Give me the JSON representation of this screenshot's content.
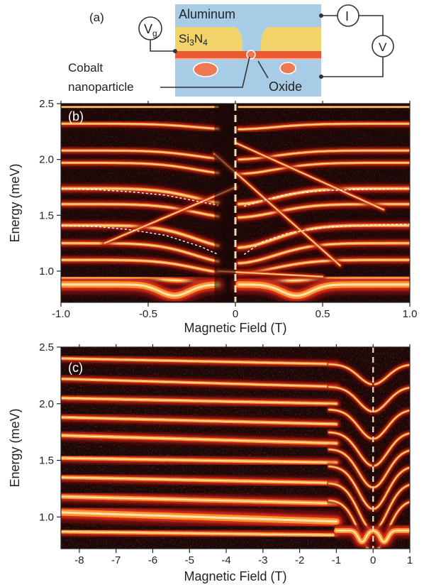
{
  "panel_a": {
    "label": "(a)",
    "vg_label": "V",
    "vg_sub": "g",
    "current_label": "I",
    "voltage_label": "V",
    "aluminum_label": "Aluminum",
    "si3n4_label": "Si",
    "si3n4_sub": "3",
    "si3n4_n": "N",
    "si3n4_sub2": "4",
    "oxide_label": "Oxide",
    "cobalt_line1": "Cobalt",
    "cobalt_line2": "nanoparticle",
    "colors": {
      "aluminum": "#a8cbe6",
      "si3n4": "#f2d36a",
      "oxide": "#ea5a33",
      "cobalt": "#ef7a52"
    }
  },
  "chart_data": [
    {
      "type": "heatmap",
      "panel_label": "(b)",
      "xlabel": "Magnetic Field (T)",
      "ylabel": "Energy (meV)",
      "xlim": [
        -1.0,
        1.0
      ],
      "ylim": [
        0.72,
        2.5
      ],
      "xticks": [
        -1.0,
        -0.5,
        0,
        0.5,
        1.0
      ],
      "xtick_labels": [
        "-1.0",
        "-0.5",
        "0",
        "0.5",
        "1.0"
      ],
      "yticks": [
        1.0,
        1.5,
        2.0,
        2.5
      ],
      "ytick_labels": [
        "1.0",
        "1.5",
        "2.0",
        "2.5"
      ],
      "colormap": [
        "#1a0707",
        "#7a0f0a",
        "#e0301a",
        "#ff9a2e",
        "#fff6cc"
      ],
      "dashed_fits": [
        {
          "x": [
            -1.0,
            -0.8,
            -0.6,
            -0.4,
            -0.2,
            -0.1
          ],
          "y": [
            1.74,
            1.73,
            1.71,
            1.68,
            1.62,
            1.59
          ]
        },
        {
          "x": [
            0.05,
            0.15,
            0.3,
            0.5,
            0.7,
            1.0
          ],
          "y": [
            1.58,
            1.63,
            1.69,
            1.72,
            1.73,
            1.74
          ]
        },
        {
          "x": [
            -1.0,
            -0.8,
            -0.6,
            -0.4,
            -0.2,
            -0.1
          ],
          "y": [
            1.41,
            1.4,
            1.37,
            1.32,
            1.22,
            1.15
          ]
        },
        {
          "x": [
            0.05,
            0.15,
            0.3,
            0.5,
            0.7,
            1.0
          ],
          "y": [
            1.15,
            1.26,
            1.34,
            1.39,
            1.41,
            1.42
          ]
        }
      ]
    },
    {
      "type": "heatmap",
      "panel_label": "(c)",
      "xlabel": "Magnetic Field (T)",
      "ylabel": "Energy (meV)",
      "xlim": [
        -8.5,
        1.0
      ],
      "ylim": [
        0.72,
        2.5
      ],
      "xticks": [
        -8,
        -7,
        -6,
        -5,
        -4,
        -3,
        -2,
        -1,
        0,
        1
      ],
      "xtick_labels": [
        "-8",
        "-7",
        "-6",
        "-5",
        "-4",
        "-3",
        "-2",
        "-1",
        "0",
        "1"
      ],
      "yticks": [
        1.0,
        1.5,
        2.0,
        2.5
      ],
      "ytick_labels": [
        "1.0",
        "1.5",
        "2.0",
        "2.5"
      ],
      "colormap": [
        "#1a0707",
        "#7a0f0a",
        "#e0301a",
        "#ff9a2e",
        "#fff6cc"
      ]
    }
  ]
}
